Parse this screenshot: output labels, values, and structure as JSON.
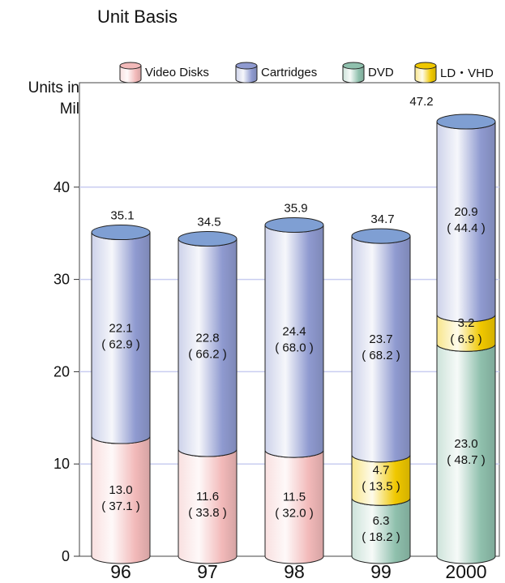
{
  "chart_data": {
    "type": "bar",
    "stacked": true,
    "title": "Unit Basis",
    "ylabel": "Units in Mil",
    "ylim": [
      0,
      50
    ],
    "yticks": [
      0,
      10,
      20,
      30,
      40
    ],
    "grid": true,
    "legend_position": "top",
    "categories": [
      "96",
      "97",
      "98",
      "99",
      "2000"
    ],
    "totals": [
      "35.1",
      "34.5",
      "35.9",
      "34.7",
      "47.2"
    ],
    "series": [
      {
        "name": "Video Disks",
        "key": "video",
        "values": [
          13.0,
          11.6,
          11.5,
          0,
          0
        ],
        "labels": [
          "13.0",
          "11.6",
          "11.5",
          "",
          ""
        ],
        "shares": [
          "( 37.1 )",
          "( 33.8 )",
          "( 32.0 )",
          "",
          ""
        ],
        "color": "#f2b9b9"
      },
      {
        "name": "DVD",
        "key": "dvd",
        "values": [
          0,
          0,
          0,
          6.3,
          23.0
        ],
        "labels": [
          "",
          "",
          "",
          "6.3",
          "23.0"
        ],
        "shares": [
          "",
          "",
          "",
          "( 18.2 )",
          "( 48.7 )"
        ],
        "color": "#8fc0ad"
      },
      {
        "name": "LD・VHD",
        "key": "ld",
        "values": [
          0,
          0,
          0,
          4.7,
          3.2
        ],
        "labels": [
          "",
          "",
          "",
          "4.7",
          "3.2"
        ],
        "shares": [
          "",
          "",
          "",
          "( 13.5 )",
          "( 6.9 )"
        ],
        "color": "#f0c800"
      },
      {
        "name": "Cartridges",
        "key": "cart",
        "values": [
          22.1,
          22.8,
          24.4,
          23.7,
          20.9
        ],
        "labels": [
          "22.1",
          "22.8",
          "24.4",
          "23.7",
          "20.9"
        ],
        "shares": [
          "( 62.9 )",
          "( 66.2 )",
          "( 68.0 )",
          "( 68.2 )",
          "( 44.4 )"
        ],
        "color": "#8f9ad0"
      }
    ],
    "legend_order": [
      "video",
      "cart",
      "dvd",
      "ld"
    ]
  }
}
